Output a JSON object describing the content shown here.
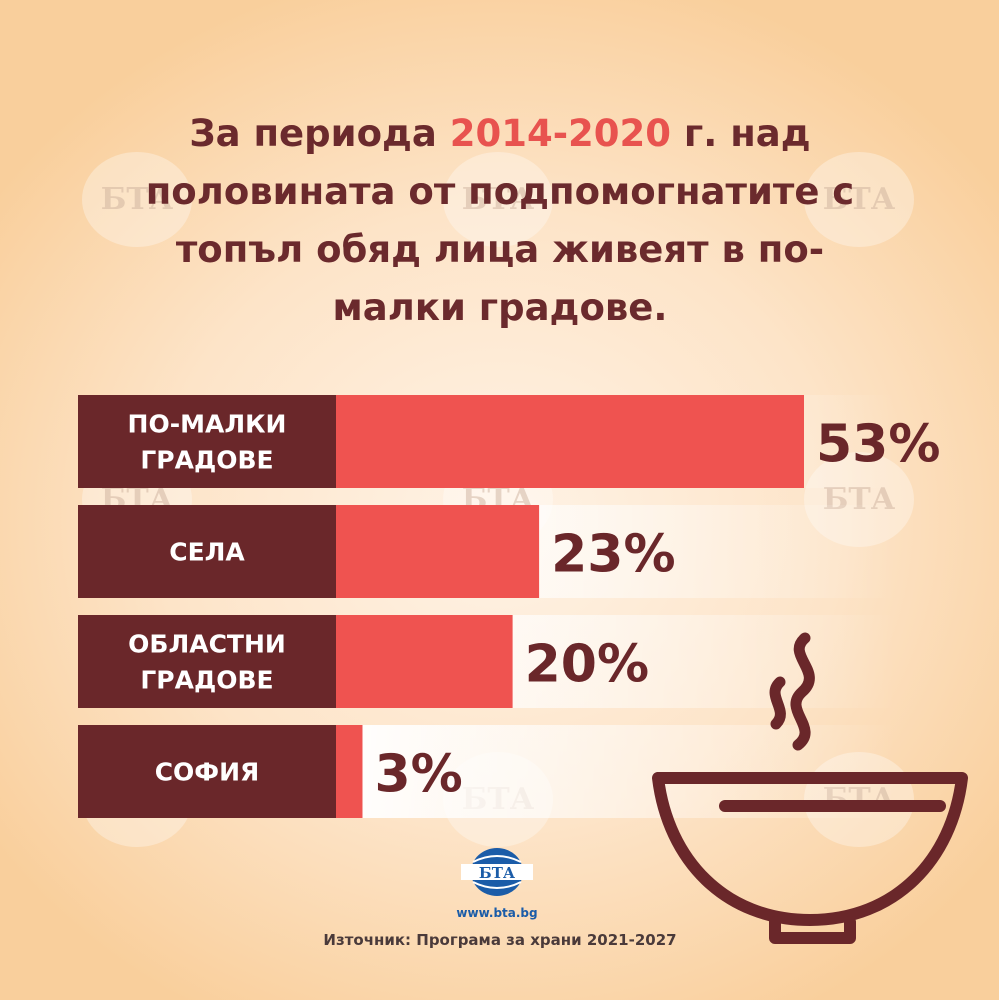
{
  "title": {
    "part1": "За периода ",
    "highlight": "2014-2020",
    "part2": " г. над половината от подпомогнатите с топъл обяд лица живеят в по-малки градове."
  },
  "chart_data": {
    "type": "bar",
    "orientation": "horizontal",
    "categories": [
      [
        "ПО-МАЛКИ",
        "ГРАДОВЕ"
      ],
      [
        "СЕЛА"
      ],
      [
        "ОБЛАСТНИ",
        "ГРАДОВЕ"
      ],
      [
        "СОФИЯ"
      ]
    ],
    "values": [
      53,
      23,
      20,
      3
    ],
    "value_labels": [
      "53%",
      "23%",
      "20%",
      "3%"
    ],
    "unit": "%",
    "xlim": [
      0,
      53
    ],
    "grid": false,
    "colors": {
      "bar": "#ef5350",
      "label_box": "#6a272a",
      "value_text": "#6a272a",
      "track": "#ffffff"
    }
  },
  "watermark_text": "БТА",
  "logo": {
    "text": "БТА",
    "url": "www.bta.bg",
    "color": "#1b5ca8"
  },
  "source": "Източник: Програма за храни 2021-2027",
  "icons": [
    "soup-bowl-icon",
    "steam-icon"
  ]
}
